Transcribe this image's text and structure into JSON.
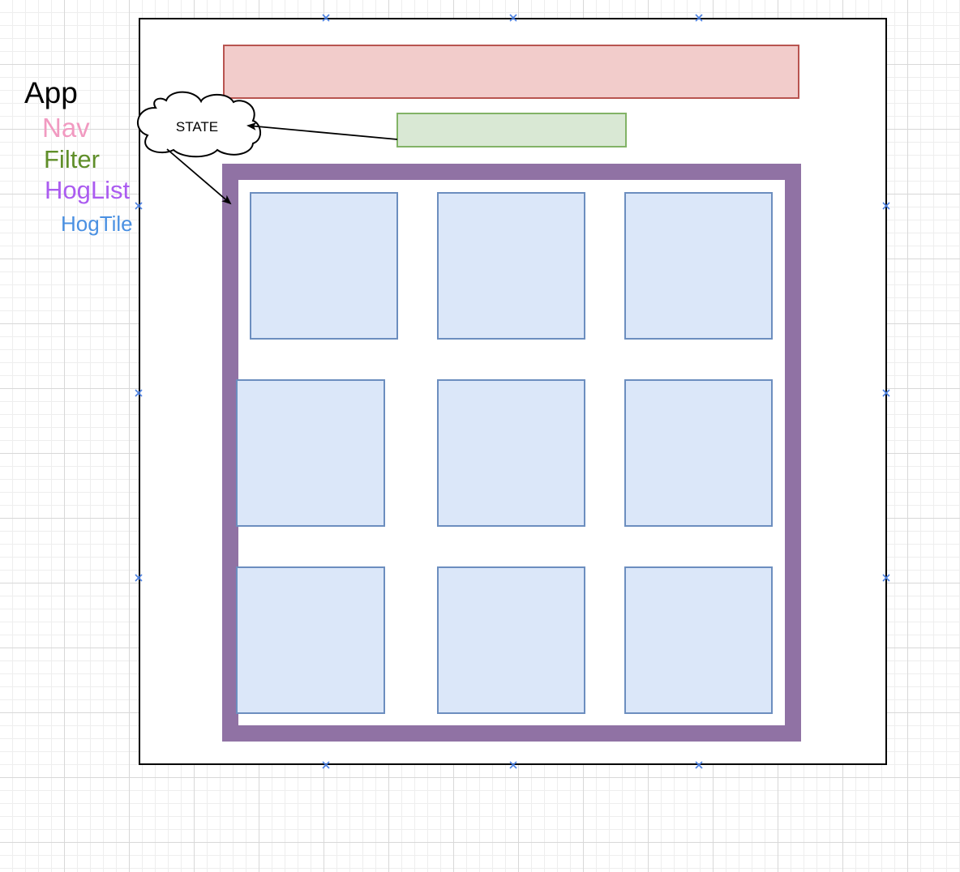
{
  "legend": {
    "app": "App",
    "nav": "Nav",
    "filter": "Filter",
    "hoglist": "HogList",
    "hogtile": "HogTile"
  },
  "state_cloud": {
    "label": "STATE"
  },
  "colors": {
    "app_border": "#000000",
    "nav_fill": "#f2cccb",
    "nav_border": "#b85450",
    "filter_fill": "#d9e8d4",
    "filter_border": "#82b366",
    "hoglist_border": "#9072a4",
    "tile_fill": "#dbe7f9",
    "tile_border": "#6c8ebf",
    "legend_app": "#000000",
    "legend_nav": "#f19ac1",
    "legend_filter": "#5f8e29",
    "legend_hoglist": "#ab5cf0",
    "legend_hogtile": "#4a90e2",
    "selection_handle": "#4a7fe0"
  },
  "hog_tiles": {
    "rows": 3,
    "columns": 3
  }
}
